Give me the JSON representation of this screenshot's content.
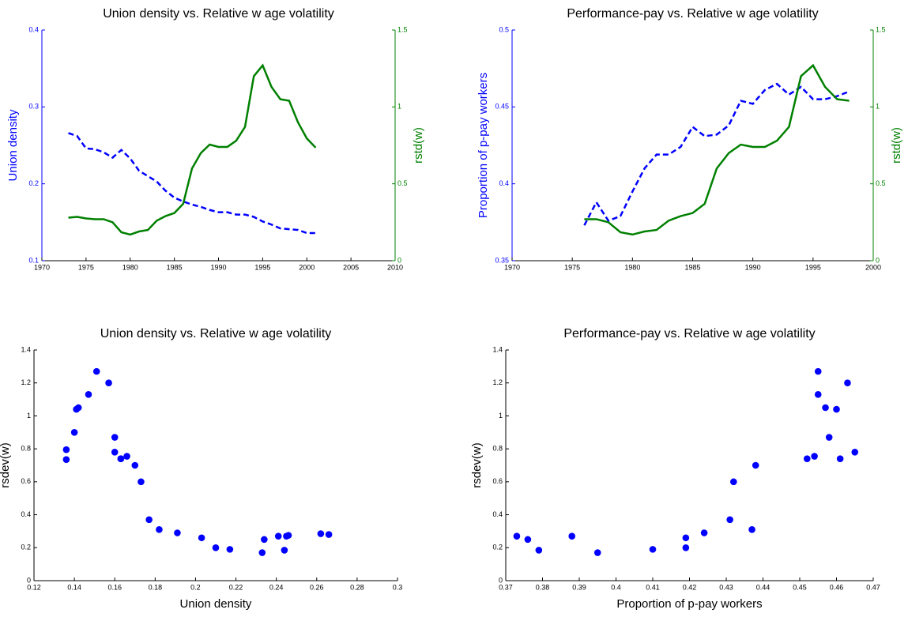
{
  "chart_data": [
    {
      "type": "line",
      "title": "Union density vs. Relative w age volatility",
      "ylabel": "Union density",
      "y2label": "rstd(w)",
      "x": [
        1973,
        1974,
        1975,
        1976,
        1977,
        1978,
        1979,
        1980,
        1981,
        1982,
        1983,
        1984,
        1985,
        1986,
        1987,
        1988,
        1989,
        1990,
        1991,
        1992,
        1993,
        1994,
        1995,
        1996,
        1997,
        1998,
        1999,
        2000,
        2001
      ],
      "xlim": [
        1970,
        2010
      ],
      "xticks": [
        1970,
        1975,
        1980,
        1985,
        1990,
        1995,
        2000,
        2005,
        2010
      ],
      "ylim": [
        0.1,
        0.4
      ],
      "yticks": [
        0.1,
        0.2,
        0.3,
        0.4
      ],
      "y2lim": [
        0,
        1.5
      ],
      "y2ticks": [
        0,
        0.5,
        1,
        1.5
      ],
      "series": [
        {
          "color": "#0000ff",
          "linestyle": "dashed",
          "axis": "y",
          "values": [
            0.266,
            0.262,
            0.246,
            0.245,
            0.241,
            0.234,
            0.244,
            0.233,
            0.217,
            0.21,
            0.203,
            0.191,
            0.182,
            0.177,
            0.173,
            0.17,
            0.166,
            0.163,
            0.163,
            0.16,
            0.16,
            0.157,
            0.151,
            0.147,
            0.142,
            0.141,
            0.14,
            0.136,
            0.136
          ]
        },
        {
          "color": "#008000",
          "linestyle": "solid",
          "axis": "y2",
          "values": [
            0.28,
            0.285,
            0.275,
            0.27,
            0.27,
            0.25,
            0.185,
            0.17,
            0.19,
            0.2,
            0.26,
            0.29,
            0.31,
            0.37,
            0.6,
            0.7,
            0.755,
            0.74,
            0.74,
            0.78,
            0.87,
            1.2,
            1.27,
            1.13,
            1.05,
            1.04,
            0.9,
            0.795,
            0.735
          ]
        }
      ]
    },
    {
      "type": "line",
      "title": "Performance-pay vs. Relative w age volatility",
      "ylabel": "Proportion of p-pay workers",
      "y2label": "rstd(w)",
      "x": [
        1976,
        1977,
        1978,
        1979,
        1980,
        1981,
        1982,
        1983,
        1984,
        1985,
        1986,
        1987,
        1988,
        1989,
        1990,
        1991,
        1992,
        1993,
        1994,
        1995,
        1996,
        1997,
        1998
      ],
      "xlim": [
        1970,
        2000
      ],
      "xticks": [
        1970,
        1975,
        1980,
        1985,
        1990,
        1995,
        2000
      ],
      "ylim": [
        0.35,
        0.5
      ],
      "yticks": [
        0.35,
        0.4,
        0.45,
        0.5
      ],
      "y2lim": [
        0,
        1.5
      ],
      "y2ticks": [
        0,
        0.5,
        1,
        1.5
      ],
      "series": [
        {
          "color": "#0000ff",
          "linestyle": "dashed",
          "axis": "y",
          "values": [
            0.373,
            0.388,
            0.376,
            0.379,
            0.395,
            0.41,
            0.419,
            0.419,
            0.424,
            0.437,
            0.431,
            0.432,
            0.438,
            0.454,
            0.452,
            0.461,
            0.465,
            0.458,
            0.463,
            0.455,
            0.455,
            0.457,
            0.46
          ]
        },
        {
          "color": "#008000",
          "linestyle": "solid",
          "axis": "y2",
          "values": [
            0.27,
            0.27,
            0.25,
            0.185,
            0.17,
            0.19,
            0.2,
            0.26,
            0.29,
            0.31,
            0.37,
            0.6,
            0.7,
            0.755,
            0.74,
            0.74,
            0.78,
            0.87,
            1.2,
            1.27,
            1.13,
            1.05,
            1.04
          ]
        }
      ]
    },
    {
      "type": "scatter",
      "title": "Union density vs. Relative w age volatility",
      "xlabel": "Union density",
      "ylabel": "rsdev(w)",
      "color": "#0000ff",
      "x": [
        0.266,
        0.262,
        0.246,
        0.245,
        0.241,
        0.234,
        0.244,
        0.233,
        0.217,
        0.21,
        0.203,
        0.191,
        0.182,
        0.177,
        0.173,
        0.17,
        0.166,
        0.163,
        0.163,
        0.16,
        0.16,
        0.157,
        0.151,
        0.147,
        0.142,
        0.141,
        0.14,
        0.136,
        0.136
      ],
      "values": [
        0.28,
        0.285,
        0.275,
        0.27,
        0.27,
        0.25,
        0.185,
        0.17,
        0.19,
        0.2,
        0.26,
        0.29,
        0.31,
        0.37,
        0.6,
        0.7,
        0.755,
        0.74,
        0.74,
        0.78,
        0.87,
        1.2,
        1.27,
        1.13,
        1.05,
        1.04,
        0.9,
        0.795,
        0.735
      ],
      "xlim": [
        0.12,
        0.3
      ],
      "xticks": [
        0.12,
        0.14,
        0.16,
        0.18,
        0.2,
        0.22,
        0.24,
        0.26,
        0.28,
        0.3
      ],
      "ylim": [
        0,
        1.4
      ],
      "yticks": [
        0,
        0.2,
        0.4,
        0.6,
        0.8,
        1,
        1.2,
        1.4
      ]
    },
    {
      "type": "scatter",
      "title": "Performance-pay vs. Relative w age volatility",
      "xlabel": "Proportion of p-pay workers",
      "ylabel": "rsdev(w)",
      "color": "#0000ff",
      "x": [
        0.373,
        0.388,
        0.376,
        0.379,
        0.395,
        0.41,
        0.419,
        0.419,
        0.424,
        0.437,
        0.431,
        0.432,
        0.438,
        0.454,
        0.452,
        0.461,
        0.465,
        0.458,
        0.463,
        0.455,
        0.455,
        0.457,
        0.46
      ],
      "values": [
        0.27,
        0.27,
        0.25,
        0.185,
        0.17,
        0.19,
        0.2,
        0.26,
        0.29,
        0.31,
        0.37,
        0.6,
        0.7,
        0.755,
        0.74,
        0.74,
        0.78,
        0.87,
        1.2,
        1.27,
        1.13,
        1.05,
        1.04
      ],
      "xlim": [
        0.37,
        0.47
      ],
      "xticks": [
        0.37,
        0.38,
        0.39,
        0.4,
        0.41,
        0.42,
        0.43,
        0.44,
        0.45,
        0.46,
        0.47
      ],
      "ylim": [
        0,
        1.4
      ],
      "yticks": [
        0,
        0.2,
        0.4,
        0.6,
        0.8,
        1,
        1.2,
        1.4
      ]
    }
  ]
}
